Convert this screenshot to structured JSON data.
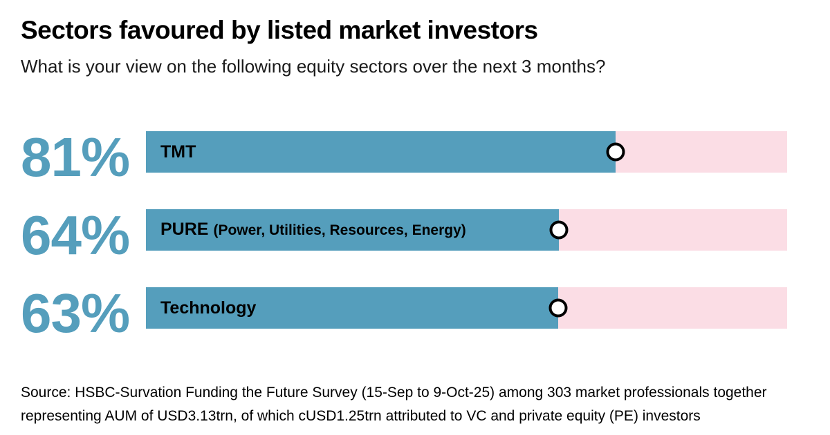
{
  "header": {
    "title": "Sectors favoured by listed market investors",
    "subtitle": "What is your view on the following equity sectors over the next 3 months?"
  },
  "chart_data": {
    "type": "bar",
    "orientation": "horizontal",
    "unit": "%",
    "title": "Sectors favoured by listed market investors",
    "question": "What is your view on the following equity sectors over the next 3 months?",
    "categories": [
      "TMT",
      "PURE (Power, Utilities, Resources, Energy)",
      "Technology"
    ],
    "values": [
      81,
      64,
      63
    ],
    "xlim": [
      0,
      100
    ],
    "grid": false,
    "legend": false,
    "bars": [
      {
        "label": "TMT",
        "label_secondary": "",
        "value": 81,
        "value_label": "81%",
        "display_fraction": 0.732
      },
      {
        "label": "PURE",
        "label_secondary": "(Power, Utilities, Resources, Energy)",
        "value": 64,
        "value_label": "64%",
        "display_fraction": 0.644
      },
      {
        "label": "Technology",
        "label_secondary": "",
        "value": 63,
        "value_label": "63%",
        "display_fraction": 0.643
      }
    ],
    "colors": {
      "bar_fill": "#559ebc",
      "bar_track": "#fbdde5",
      "value_text": "#559ebc",
      "marker_fill": "#ffffff",
      "marker_border": "#000000"
    }
  },
  "source": {
    "line1": "Source: HSBC-Survation Funding the Future Survey (15-Sep to 9-Oct-25) among 303 market professionals together",
    "line2": "representing AUM of USD3.13trn, of which cUSD1.25trn attributed to VC and private equity (PE) investors"
  }
}
